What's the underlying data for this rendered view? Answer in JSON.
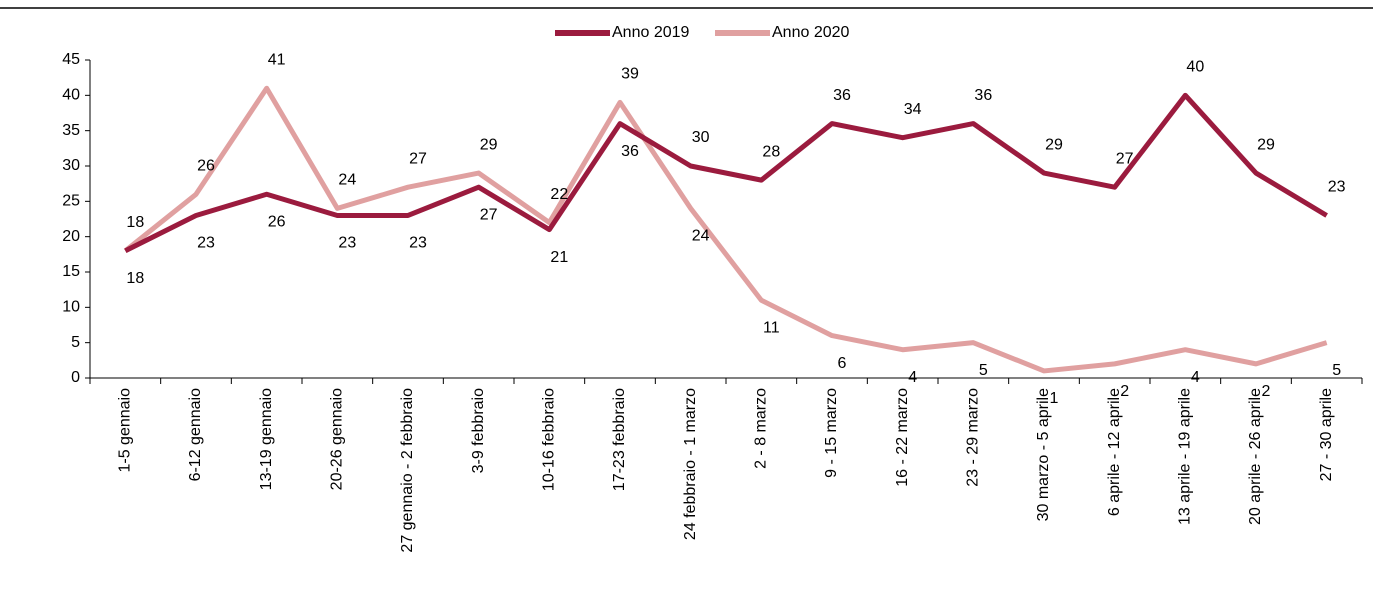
{
  "chart_data": {
    "type": "line",
    "categories": [
      "1-5 gennaio",
      "6-12 gennaio",
      "13-19 gennaio",
      "20-26 gennaio",
      "27 gennaio - 2 febbraio",
      "3-9 febbraio",
      "10-16 febbraio",
      "17-23 febbraio",
      "24 febbraio - 1 marzo",
      "2 - 8 marzo",
      "9 - 15 marzo",
      "16 - 22 marzo",
      "23 - 29 marzo",
      "30 marzo - 5 aprile",
      "6 aprile - 12 aprile",
      "13 aprile - 19 aprile",
      "20 aprile - 26 aprile",
      "27 - 30 aprile"
    ],
    "series": [
      {
        "name": "Anno 2019",
        "color": "#9b1b3e",
        "values": [
          18,
          23,
          26,
          23,
          23,
          27,
          21,
          36,
          30,
          28,
          36,
          34,
          36,
          29,
          27,
          40,
          29,
          23
        ]
      },
      {
        "name": "Anno 2020",
        "color": "#e0a0a0",
        "values": [
          18,
          26,
          41,
          24,
          27,
          29,
          22,
          39,
          24,
          11,
          6,
          4,
          5,
          1,
          2,
          4,
          2,
          5
        ]
      }
    ],
    "ylim": [
      0,
      45
    ],
    "yticks": [
      0,
      5,
      10,
      15,
      20,
      25,
      30,
      35,
      40,
      45
    ],
    "legend": "top"
  }
}
